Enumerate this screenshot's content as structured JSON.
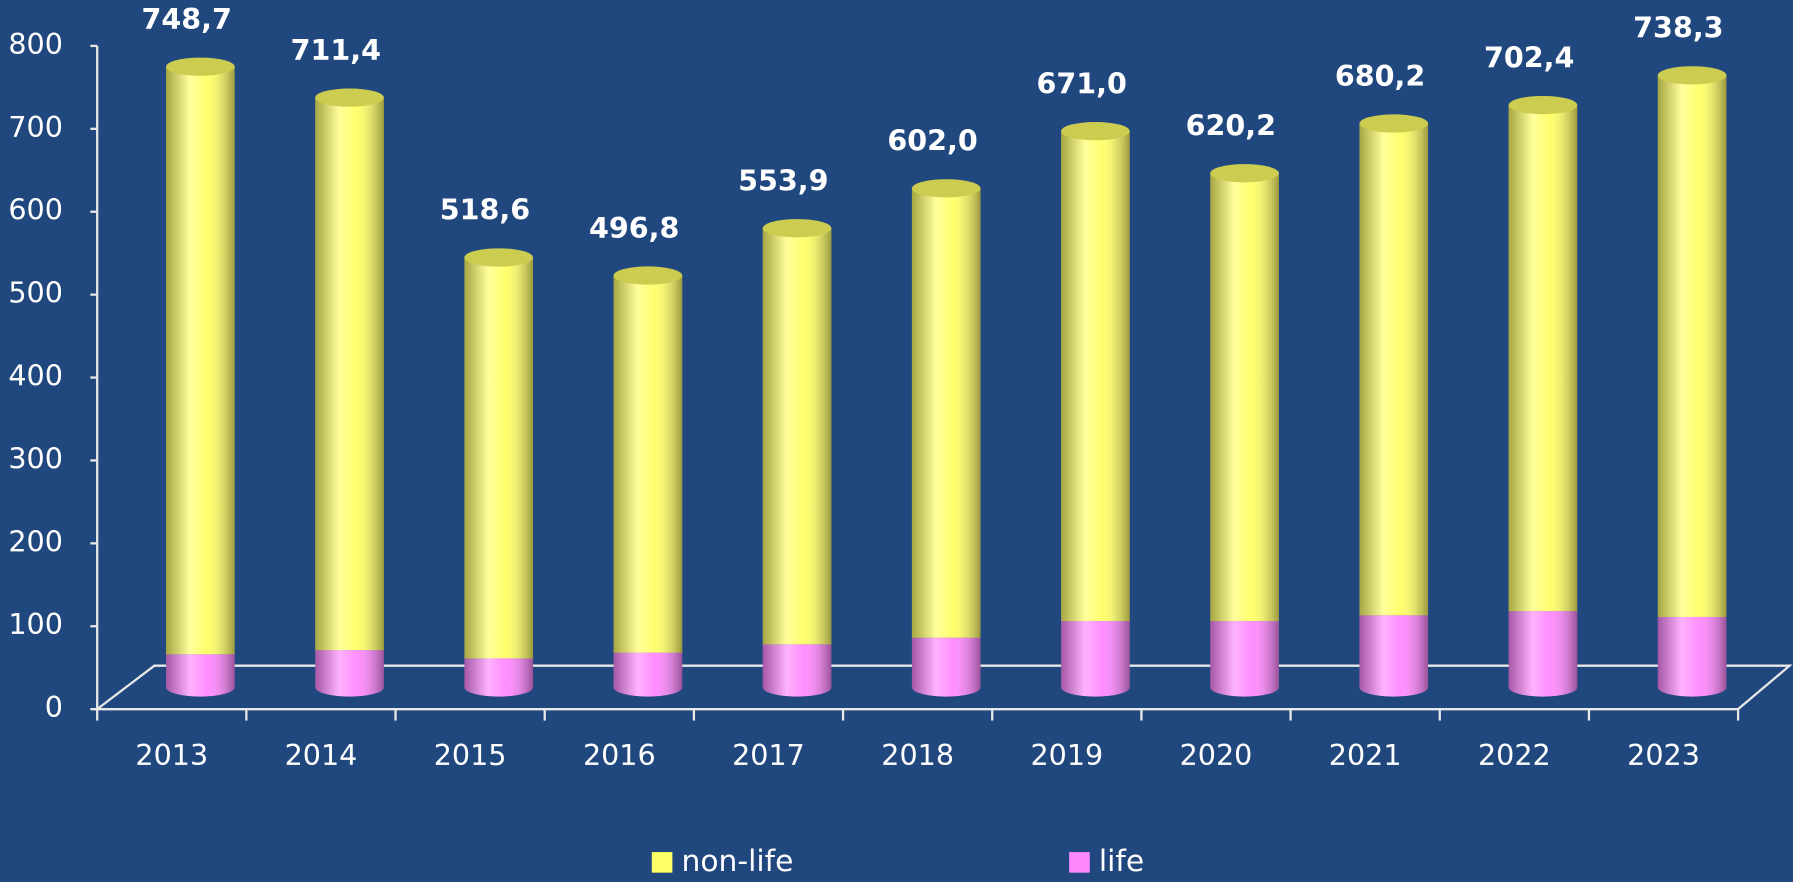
{
  "chart_data": {
    "type": "stacked_bar_3d",
    "categories": [
      "2013",
      "2014",
      "2015",
      "2016",
      "2017",
      "2018",
      "2019",
      "2020",
      "2021",
      "2022",
      "2023"
    ],
    "series": [
      {
        "name": "life",
        "color": "#ff88ff",
        "values": [
          40,
          45,
          35,
          42,
          52,
          60,
          80,
          80,
          87,
          92,
          85
        ]
      },
      {
        "name": "non-life",
        "color": "#ffff66",
        "values": [
          708.7,
          666.4,
          483.6,
          454.8,
          501.9,
          542.0,
          591.0,
          540.2,
          593.2,
          610.4,
          653.3
        ]
      }
    ],
    "totals": {
      "values": [
        748.7,
        711.4,
        518.6,
        496.8,
        553.9,
        602.0,
        671.0,
        620.2,
        680.2,
        702.4,
        738.3
      ],
      "value_labels": [
        "748,7",
        "711,4",
        "518,6",
        "496,8",
        "553,9",
        "602,0",
        "671,0",
        "620,2",
        "680,2",
        "702,4",
        "738,3"
      ]
    },
    "ylim": [
      0,
      800
    ],
    "yticks": [
      0,
      100,
      200,
      300,
      400,
      500,
      600,
      700,
      800
    ],
    "grid": false,
    "legend": "bottom",
    "legend_order": [
      1,
      0
    ]
  }
}
